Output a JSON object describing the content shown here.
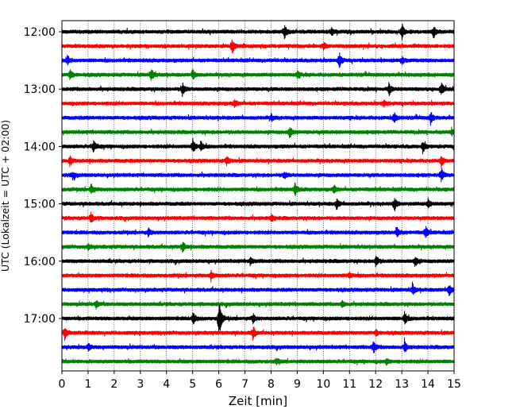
{
  "chart_data": {
    "type": "line",
    "subtype": "helicorder-seismogram",
    "xlabel": "Zeit  [min]",
    "ylabel": "UTC (Lokalzeit = UTC + 02:00)",
    "xlim": [
      0,
      15
    ],
    "x_ticks": [
      "0",
      "1",
      "2",
      "3",
      "4",
      "5",
      "6",
      "7",
      "8",
      "9",
      "10",
      "11",
      "12",
      "13",
      "14",
      "15"
    ],
    "y_tick_labels": [
      "12:00",
      "13:00",
      "14:00",
      "15:00",
      "16:00",
      "17:00"
    ],
    "y_tick_rows": [
      0,
      4,
      8,
      12,
      16,
      20
    ],
    "grid": "vertical dotted lines at each minute",
    "row_colors": [
      "#000000",
      "#ff0000",
      "#0000ff",
      "#008000"
    ],
    "row_interval_minutes": 15,
    "rows": [
      {
        "start": "12:00",
        "events": [
          [
            8.5,
            1.5
          ],
          [
            13.0,
            1.4
          ],
          [
            14.2,
            1.3
          ],
          [
            10.3,
            0.7
          ]
        ]
      },
      {
        "start": "12:15",
        "events": [
          [
            6.5,
            1.6
          ],
          [
            10.0,
            0.6
          ]
        ]
      },
      {
        "start": "12:30",
        "events": [
          [
            10.6,
            1.5
          ],
          [
            0.2,
            0.8
          ],
          [
            13.0,
            0.8
          ]
        ]
      },
      {
        "start": "12:45",
        "events": [
          [
            0.3,
            1.1
          ],
          [
            3.4,
            1.3
          ],
          [
            5.0,
            1.0
          ],
          [
            9.0,
            0.7
          ]
        ]
      },
      {
        "start": "13:00",
        "events": [
          [
            4.6,
            1.3
          ],
          [
            12.5,
            1.2
          ],
          [
            14.5,
            1.2
          ]
        ]
      },
      {
        "start": "13:15",
        "events": [
          [
            6.6,
            0.7
          ],
          [
            12.3,
            0.6
          ]
        ]
      },
      {
        "start": "13:30",
        "events": [
          [
            12.7,
            1.1
          ],
          [
            14.1,
            1.1
          ],
          [
            8.0,
            0.6
          ]
        ]
      },
      {
        "start": "13:45",
        "events": [
          [
            8.7,
            1.1
          ],
          [
            14.9,
            0.6
          ]
        ]
      },
      {
        "start": "14:00",
        "events": [
          [
            1.2,
            1.3
          ],
          [
            5.0,
            1.3
          ],
          [
            5.3,
            1.0
          ],
          [
            13.8,
            1.1
          ]
        ]
      },
      {
        "start": "14:15",
        "events": [
          [
            0.3,
            0.8
          ],
          [
            6.3,
            0.8
          ],
          [
            14.5,
            1.0
          ]
        ]
      },
      {
        "start": "14:30",
        "events": [
          [
            8.5,
            0.7
          ],
          [
            14.5,
            1.3
          ],
          [
            0.4,
            0.7
          ]
        ]
      },
      {
        "start": "14:45",
        "events": [
          [
            1.1,
            1.1
          ],
          [
            8.9,
            1.3
          ],
          [
            10.4,
            0.7
          ]
        ]
      },
      {
        "start": "15:00",
        "events": [
          [
            10.5,
            1.0
          ],
          [
            12.7,
            1.3
          ],
          [
            14.0,
            0.9
          ]
        ]
      },
      {
        "start": "15:15",
        "events": [
          [
            1.1,
            1.0
          ],
          [
            8.0,
            0.6
          ]
        ]
      },
      {
        "start": "15:30",
        "events": [
          [
            12.8,
            1.2
          ],
          [
            13.9,
            1.2
          ],
          [
            3.3,
            0.7
          ]
        ]
      },
      {
        "start": "15:45",
        "events": [
          [
            4.6,
            1.0
          ],
          [
            1.0,
            0.6
          ]
        ]
      },
      {
        "start": "16:00",
        "events": [
          [
            12.0,
            1.2
          ],
          [
            13.5,
            1.0
          ],
          [
            7.2,
            0.7
          ]
        ]
      },
      {
        "start": "16:15",
        "events": [
          [
            5.7,
            0.8
          ],
          [
            11.0,
            0.6
          ]
        ]
      },
      {
        "start": "16:30",
        "events": [
          [
            13.4,
            1.1
          ],
          [
            14.8,
            1.3
          ]
        ]
      },
      {
        "start": "16:45",
        "events": [
          [
            1.3,
            0.8
          ],
          [
            10.7,
            0.6
          ]
        ]
      },
      {
        "start": "17:00",
        "events": [
          [
            6.0,
            4.0
          ],
          [
            5.0,
            1.3
          ],
          [
            13.1,
            1.3
          ],
          [
            7.3,
            0.9
          ]
        ]
      },
      {
        "start": "17:15",
        "events": [
          [
            7.3,
            1.3
          ],
          [
            0.1,
            1.1
          ],
          [
            12.0,
            0.6
          ]
        ]
      },
      {
        "start": "17:30",
        "events": [
          [
            11.9,
            1.2
          ],
          [
            13.1,
            1.1
          ],
          [
            1.0,
            0.6
          ]
        ]
      },
      {
        "start": "17:45",
        "events": [
          [
            8.2,
            0.6
          ],
          [
            12.4,
            0.5
          ]
        ]
      }
    ]
  }
}
